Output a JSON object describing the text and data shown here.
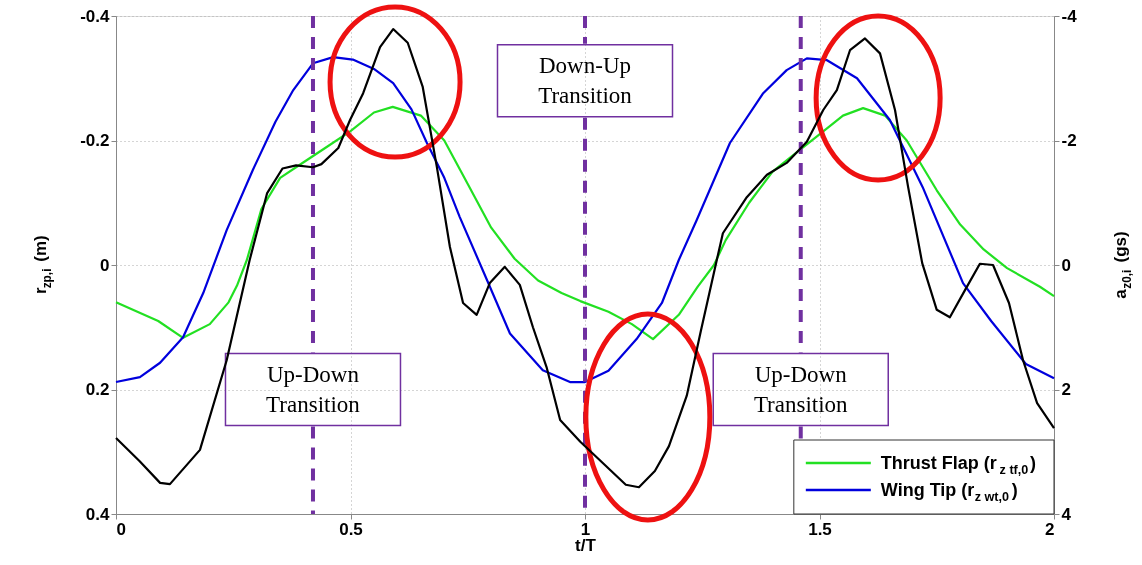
{
  "chart_data": {
    "type": "line",
    "xlabel": "t/T",
    "ylabel": "r$_{zp,i}$ (m)",
    "y2label": "a$_{z0,i}$ (gs)",
    "xlim": [
      0,
      2
    ],
    "xticks": [
      0,
      0.5,
      1,
      1.5,
      2
    ],
    "ylim": [
      0.4,
      -0.4
    ],
    "yticks": [
      -0.4,
      -0.2,
      0,
      0.2,
      0.4
    ],
    "y2lim": [
      4,
      -4
    ],
    "y2ticks": [
      -4,
      -2,
      0,
      2,
      4
    ],
    "grid": true,
    "legend": "bottom right",
    "line_style": "solid",
    "marker": "none",
    "series": [
      {
        "name": "Thrust Flap (r$_{z tf,0}$)",
        "color": "#22e022",
        "x": [
          0,
          0.09,
          0.143,
          0.2,
          0.24,
          0.258,
          0.279,
          0.31,
          0.35,
          0.4,
          0.45,
          0.5,
          0.55,
          0.59,
          0.65,
          0.7,
          0.75,
          0.8,
          0.85,
          0.9,
          0.95,
          0.99,
          1.05,
          1.1,
          1.145,
          1.2,
          1.24,
          1.275,
          1.3,
          1.35,
          1.4,
          1.45,
          1.5,
          1.55,
          1.593,
          1.64,
          1.686,
          1.75,
          1.8,
          1.85,
          1.9,
          1.97,
          2.0
        ],
        "values": [
          0.06,
          0.09,
          0.117,
          0.095,
          0.06,
          0.033,
          -0.008,
          -0.09,
          -0.14,
          -0.165,
          -0.19,
          -0.215,
          -0.245,
          -0.254,
          -0.24,
          -0.2,
          -0.13,
          -0.06,
          -0.01,
          0.025,
          0.045,
          0.058,
          0.075,
          0.095,
          0.119,
          0.08,
          0.035,
          0.0,
          -0.04,
          -0.1,
          -0.15,
          -0.18,
          -0.21,
          -0.24,
          -0.252,
          -0.24,
          -0.2,
          -0.12,
          -0.065,
          -0.025,
          0.005,
          0.035,
          0.05
        ]
      },
      {
        "name": "Wing Tip (r$_{z wt,0}$)",
        "color": "#0000dd",
        "x": [
          0,
          0.051,
          0.094,
          0.143,
          0.186,
          0.236,
          0.292,
          0.34,
          0.378,
          0.42,
          0.463,
          0.505,
          0.55,
          0.591,
          0.63,
          0.663,
          0.7,
          0.733,
          0.791,
          0.84,
          0.91,
          0.968,
          1.0,
          1.05,
          1.11,
          1.164,
          1.2,
          1.238,
          1.309,
          1.38,
          1.43,
          1.473,
          1.516,
          1.58,
          1.65,
          1.72,
          1.806,
          1.866,
          1.94,
          2.0
        ],
        "values": [
          0.188,
          0.18,
          0.157,
          0.116,
          0.045,
          -0.056,
          -0.153,
          -0.23,
          -0.281,
          -0.324,
          -0.334,
          -0.33,
          -0.315,
          -0.292,
          -0.25,
          -0.196,
          -0.14,
          -0.077,
          0.024,
          0.11,
          0.169,
          0.188,
          0.188,
          0.17,
          0.119,
          0.061,
          -0.008,
          -0.072,
          -0.196,
          -0.276,
          -0.313,
          -0.332,
          -0.329,
          -0.3,
          -0.233,
          -0.125,
          0.029,
          0.09,
          0.159,
          0.182
        ]
      },
      {
        "color": "#000000",
        "axis": "y2",
        "x": [
          0,
          0.05,
          0.094,
          0.115,
          0.179,
          0.236,
          0.285,
          0.322,
          0.355,
          0.384,
          0.42,
          0.438,
          0.474,
          0.499,
          0.527,
          0.563,
          0.591,
          0.622,
          0.654,
          0.684,
          0.712,
          0.74,
          0.769,
          0.797,
          0.829,
          0.861,
          0.889,
          0.918,
          0.947,
          0.99,
          1.087,
          1.115,
          1.149,
          1.179,
          1.217,
          1.247,
          1.281,
          1.294,
          1.345,
          1.388,
          1.43,
          1.473,
          1.508,
          1.537,
          1.565,
          1.597,
          1.629,
          1.661,
          1.689,
          1.719,
          1.75,
          1.778,
          1.812,
          1.842,
          1.87,
          1.904,
          1.934,
          1.964,
          2.0
        ],
        "values": [
          2.78,
          3.15,
          3.5,
          3.52,
          2.97,
          1.53,
          -0.08,
          -1.15,
          -1.55,
          -1.6,
          -1.57,
          -1.62,
          -1.88,
          -2.33,
          -2.76,
          -3.5,
          -3.79,
          -3.57,
          -2.86,
          -1.58,
          -0.29,
          0.61,
          0.8,
          0.29,
          0.03,
          0.32,
          1.0,
          1.64,
          2.49,
          2.84,
          3.53,
          3.57,
          3.31,
          2.91,
          2.1,
          1.06,
          -0.08,
          -0.51,
          -1.09,
          -1.45,
          -1.64,
          -1.98,
          -2.49,
          -2.81,
          -3.45,
          -3.64,
          -3.4,
          -2.49,
          -1.25,
          -0.03,
          0.72,
          0.84,
          0.38,
          -0.02,
          0.0,
          0.61,
          1.53,
          2.22,
          2.62
        ]
      }
    ],
    "ref_lines": [
      {
        "axis": "x",
        "value": 0.42,
        "label": "Up-Down\nTransition",
        "color": "#7030a0",
        "line_style": "dashed"
      },
      {
        "axis": "x",
        "value": 1.0,
        "label": "Down-Up\nTransition",
        "color": "#7030a0",
        "line_style": "dashed"
      },
      {
        "axis": "x",
        "value": 1.46,
        "label": "Up-Down\nTransition",
        "color": "#7030a0",
        "line_style": "dashed"
      }
    ]
  }
}
